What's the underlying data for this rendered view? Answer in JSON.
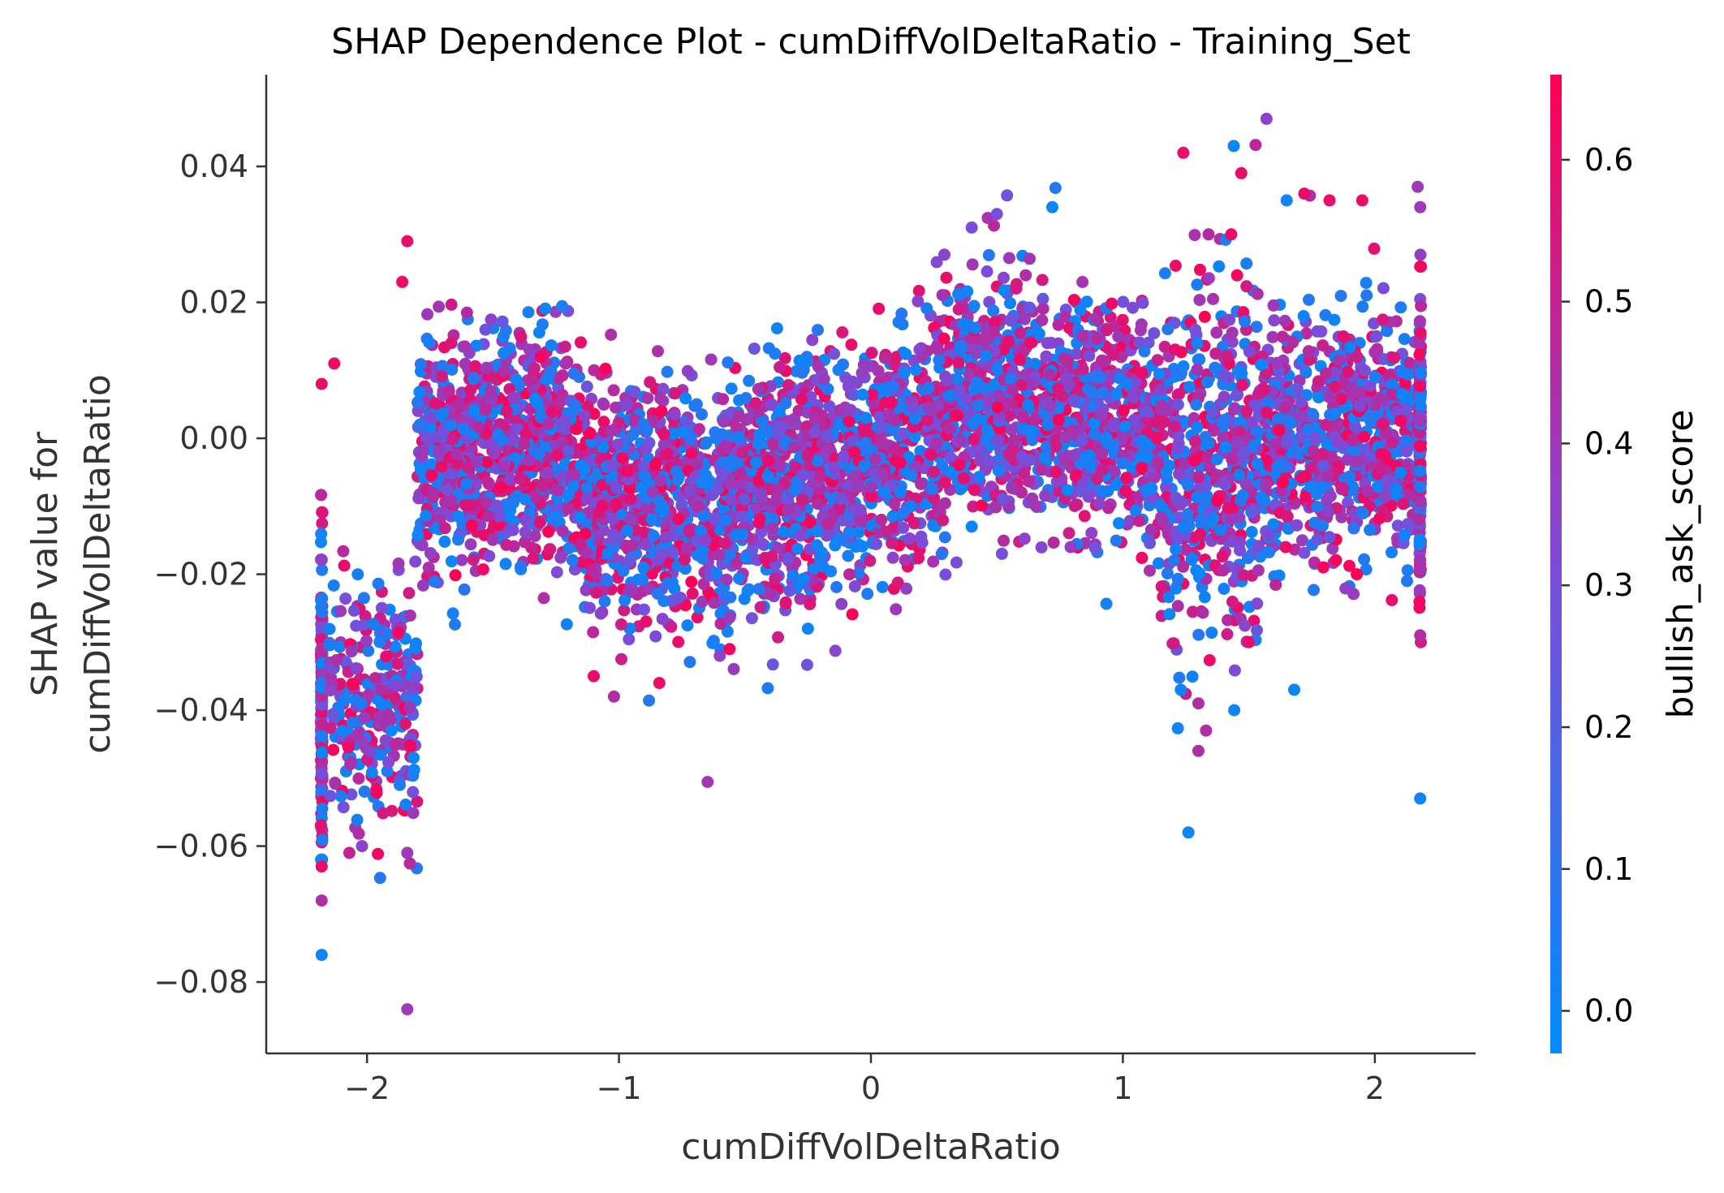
{
  "chart_data": {
    "type": "scatter",
    "title": "SHAP Dependence Plot - cumDiffVolDeltaRatio - Training_Set",
    "xlabel": "cumDiffVolDeltaRatio",
    "ylabel_lines": [
      "SHAP value for",
      "cumDiffVolDeltaRatio"
    ],
    "xlim": [
      -2.4,
      2.4
    ],
    "ylim": [
      -0.0905,
      0.0535
    ],
    "x_ticks": [
      -2,
      -1,
      0,
      1,
      2
    ],
    "x_tick_labels": [
      "−2",
      "−1",
      "0",
      "1",
      "2"
    ],
    "y_ticks": [
      -0.08,
      -0.06,
      -0.04,
      -0.02,
      0.0,
      0.02,
      0.04
    ],
    "y_tick_labels": [
      "−0.08",
      "−0.06",
      "−0.04",
      "−0.02",
      "0.00",
      "0.02",
      "0.04"
    ],
    "color_feature": "bullish_ask_score",
    "color_range": [
      -0.03,
      0.66
    ],
    "colorbar_ticks": [
      0.0,
      0.1,
      0.2,
      0.3,
      0.4,
      0.5,
      0.6
    ],
    "colorbar_tick_labels": [
      "0.0",
      "0.1",
      "0.2",
      "0.3",
      "0.4",
      "0.5",
      "0.6"
    ],
    "colormap": [
      "#008bfb",
      "#7e4bd8",
      "#ff0052"
    ],
    "grid": false,
    "legend": "colorbar-right",
    "outliers": [
      {
        "x": -2.18,
        "y": -0.076,
        "c": 0.0
      },
      {
        "x": -1.84,
        "y": -0.084,
        "c": 0.4
      },
      {
        "x": -2.18,
        "y": -0.068,
        "c": 0.45
      },
      {
        "x": -2.18,
        "y": -0.063,
        "c": 0.6
      },
      {
        "x": -1.84,
        "y": -0.061,
        "c": 0.4
      },
      {
        "x": -2.02,
        "y": -0.06,
        "c": 0.35
      },
      {
        "x": -2.07,
        "y": -0.061,
        "c": 0.5
      },
      {
        "x": -1.84,
        "y": 0.029,
        "c": 0.6
      },
      {
        "x": -1.86,
        "y": 0.023,
        "c": 0.6
      },
      {
        "x": -2.13,
        "y": 0.011,
        "c": 0.6
      },
      {
        "x": -2.18,
        "y": 0.008,
        "c": 0.6
      },
      {
        "x": -1.87,
        "y": -0.051,
        "c": 0.05
      },
      {
        "x": 1.57,
        "y": 0.047,
        "c": 0.35
      },
      {
        "x": 1.44,
        "y": 0.043,
        "c": 0.0
      },
      {
        "x": 1.24,
        "y": 0.042,
        "c": 0.6
      },
      {
        "x": 1.47,
        "y": 0.039,
        "c": 0.6
      },
      {
        "x": 1.72,
        "y": 0.036,
        "c": 0.6
      },
      {
        "x": 1.65,
        "y": 0.035,
        "c": 0.0
      },
      {
        "x": 1.82,
        "y": 0.035,
        "c": 0.6
      },
      {
        "x": 1.95,
        "y": 0.035,
        "c": 0.6
      },
      {
        "x": 2.17,
        "y": 0.037,
        "c": 0.4
      },
      {
        "x": 2.18,
        "y": 0.034,
        "c": 0.4
      },
      {
        "x": 0.72,
        "y": 0.034,
        "c": 0.0
      },
      {
        "x": 0.5,
        "y": 0.033,
        "c": 0.3
      },
      {
        "x": 0.4,
        "y": 0.031,
        "c": 0.3
      },
      {
        "x": 1.34,
        "y": 0.03,
        "c": 0.45
      },
      {
        "x": 1.43,
        "y": 0.03,
        "c": 0.6
      },
      {
        "x": 2.18,
        "y": -0.053,
        "c": 0.0
      },
      {
        "x": 1.26,
        "y": -0.058,
        "c": 0.0
      },
      {
        "x": 1.23,
        "y": -0.037,
        "c": 0.0
      },
      {
        "x": 1.68,
        "y": -0.037,
        "c": 0.0
      },
      {
        "x": 1.3,
        "y": -0.046,
        "c": 0.45
      },
      {
        "x": 1.33,
        "y": -0.043,
        "c": 0.45
      },
      {
        "x": 1.3,
        "y": -0.039,
        "c": 0.45
      },
      {
        "x": -1.02,
        "y": -0.038,
        "c": 0.45
      },
      {
        "x": -1.1,
        "y": -0.035,
        "c": 0.6
      },
      {
        "x": -0.84,
        "y": -0.036,
        "c": 0.6
      },
      {
        "x": -0.6,
        "y": -0.032,
        "c": 0.35
      },
      {
        "x": -0.25,
        "y": -0.028,
        "c": 0.0
      },
      {
        "x": 0.52,
        "y": -0.017,
        "c": 0.3
      },
      {
        "x": 0.4,
        "y": -0.013,
        "c": 0.0
      },
      {
        "x": 2.18,
        "y": -0.029,
        "c": 0.45
      },
      {
        "x": 1.5,
        "y": -0.03,
        "c": 0.6
      }
    ]
  }
}
